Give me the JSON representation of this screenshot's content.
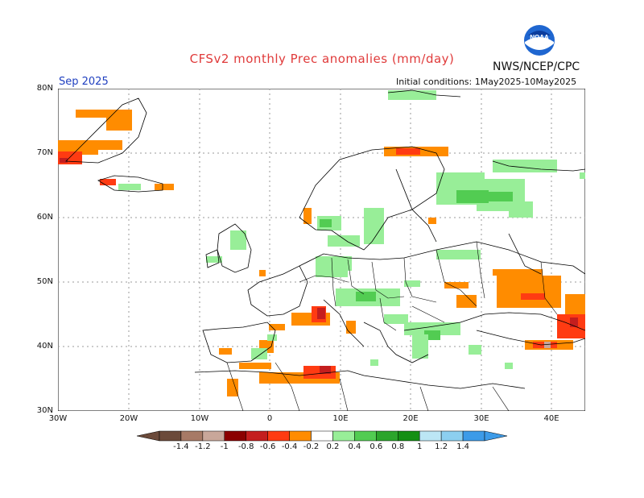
{
  "title": "CFSv2 monthly Prec anomalies (mm/day)",
  "agency": "NWS/NCEP/CPC",
  "logo_text": "NOAA",
  "month": "Sep 2025",
  "initial_conditions": "Initial conditions: 1May2025-10May2025",
  "lat_labels": [
    "80N",
    "70N",
    "60N",
    "50N",
    "40N",
    "30N"
  ],
  "lon_labels": [
    "30W",
    "20W",
    "10W",
    "0",
    "10E",
    "20E",
    "30E",
    "40E"
  ],
  "colorbar": {
    "labels": [
      "-1.4",
      "-1.2",
      "-1",
      "-0.8",
      "-0.6",
      "-0.4",
      "-0.2",
      "0.2",
      "0.4",
      "0.6",
      "0.8",
      "1",
      "1.2",
      "1.4"
    ],
    "colors": [
      "#6b4a3a",
      "#a77a66",
      "#c9a79a",
      "#8b0000",
      "#c41e1e",
      "#ff3b12",
      "#ff8c00",
      "#ffffff",
      "#98ee98",
      "#52cc52",
      "#2ca52c",
      "#148f14",
      "#bce6f5",
      "#8ccff0",
      "#3d9be8"
    ]
  }
}
